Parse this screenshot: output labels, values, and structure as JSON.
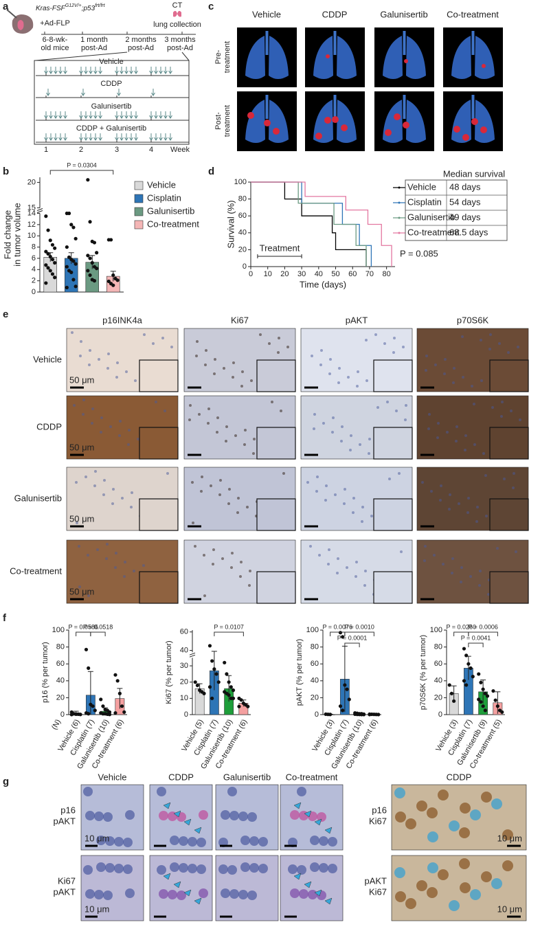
{
  "panel_labels": [
    "a",
    "b",
    "c",
    "d",
    "e",
    "f",
    "g"
  ],
  "schematic": {
    "genotype": [
      "Kras-FSF",
      "G12V/+",
      ";p53",
      "frt/frt"
    ],
    "timeline": [
      [
        "+Ad-FLP",
        "6-8-wk-",
        "old mice"
      ],
      [
        "1 month",
        "post-Ad"
      ],
      [
        "2 months",
        "post-Ad"
      ],
      [
        "CT",
        "lung collection",
        "3 months",
        "post-Ad"
      ]
    ],
    "arms": [
      "Vehicle",
      "CDDP",
      "Galunisertib",
      "CDDP + Galunisertib"
    ],
    "weeks": [
      "1",
      "2",
      "3",
      "4",
      "Week"
    ]
  },
  "ct": {
    "columns": [
      "Vehicle",
      "CDDP",
      "Galunisertib",
      "Co-treatment"
    ],
    "rows": [
      [
        "Pre-",
        "treatment"
      ],
      [
        "Post-",
        "treatment"
      ]
    ]
  },
  "ihc": {
    "columns": [
      "p16INK4a",
      "Ki67",
      "pAKT",
      "p70S6K"
    ],
    "rows": [
      "Vehicle",
      "CDDP",
      "Galunisertib",
      "Co-treatment"
    ],
    "scale_bar": "50 μm"
  },
  "if": {
    "columns": [
      "Vehicle",
      "CDDP",
      "Galunisertib",
      "Co-treatment"
    ],
    "rows": [
      [
        "p16",
        "pAKT"
      ],
      [
        "Ki67",
        "pAKT"
      ]
    ],
    "scale_bar": "10 μm",
    "extra": {
      "column": "CDDP",
      "rows": [
        [
          "p16",
          "Ki67"
        ],
        [
          "pAKT",
          "Ki67"
        ]
      ]
    }
  },
  "chart_data": [
    {
      "type": "bar",
      "ylabel": [
        "Fold change",
        "in tumor volume"
      ],
      "legend": "right",
      "categories": [
        "Vehicle",
        "Cisplatin",
        "Galunisertib",
        "Co-treatment"
      ],
      "colors": [
        "#d9d9d9",
        "#2e75b6",
        "#6b9a82",
        "#f4b6b6"
      ],
      "values": [
        6.2,
        6.0,
        5.3,
        2.8
      ],
      "errors": [
        0.8,
        1.0,
        1.2,
        0.9
      ],
      "points": [
        [
          13.5,
          11,
          9.2,
          8.4,
          7.8,
          7.2,
          6.8,
          6.3,
          5.8,
          5.2,
          4.8,
          4.3,
          3.8,
          3.2,
          2.6,
          1.6
        ],
        [
          14,
          14,
          12,
          11.5,
          9.5,
          8,
          6.2,
          5.8,
          5.5,
          5,
          4.5,
          3.8,
          3.5,
          2.2,
          1,
          0.8
        ],
        [
          20.5,
          12.5,
          9,
          8.8,
          7,
          6.5,
          6,
          5.2,
          4.5,
          4.2,
          3.8,
          3,
          2.2,
          2
        ],
        [
          9.3,
          9.3,
          3,
          2.4,
          2.1,
          1.9,
          1.5,
          1.2
        ]
      ],
      "ylim": [
        0,
        21
      ],
      "ybreak": [
        14,
        15
      ],
      "yticks": [
        0,
        2,
        4,
        6,
        8,
        10,
        12,
        14,
        15,
        20
      ],
      "p_values": [
        "P = 0.0304"
      ]
    },
    {
      "type": "step",
      "ylabel": "Survival (%)",
      "xlabel": "Time (days)",
      "table_header": "Median survival",
      "series": [
        {
          "name": "Vehicle",
          "color": "#000000",
          "median": "48 days",
          "x": [
            0,
            20,
            30,
            48,
            50,
            68
          ],
          "values": [
            100,
            80,
            60,
            40,
            20,
            0
          ]
        },
        {
          "name": "Cisplatin",
          "color": "#2e75b6",
          "median": "54 days",
          "x": [
            0,
            30,
            54,
            64,
            71
          ],
          "values": [
            100,
            75,
            50,
            25,
            0
          ]
        },
        {
          "name": "Galunisertib",
          "color": "#6b9a82",
          "median": "49 days",
          "x": [
            0,
            28,
            49,
            62,
            68
          ],
          "values": [
            100,
            75,
            50,
            25,
            0
          ]
        },
        {
          "name": "Co-treatment",
          "color": "#e377a0",
          "median": "68.5 days",
          "x": [
            0,
            32,
            56,
            69,
            77,
            83
          ],
          "values": [
            100,
            83,
            67,
            50,
            25,
            0
          ]
        }
      ],
      "xlim": [
        0,
        85
      ],
      "xticks": [
        0,
        10,
        20,
        30,
        40,
        50,
        60,
        70,
        80
      ],
      "ylim": [
        0,
        100
      ],
      "yticks": [
        0,
        20,
        40,
        60,
        80,
        100
      ],
      "treatment": {
        "label": "Treatment",
        "range": [
          4,
          30
        ]
      },
      "p_value": "P = 0.085"
    },
    {
      "type": "bar",
      "ylabel": "p16 (% per tumor)",
      "xlabel": "(N)",
      "categories": [
        "Vehicle (6)",
        "Cisplatin (7)",
        "Galunisertib (10)",
        "Co-treatment (6)"
      ],
      "colors": [
        "#d9d9d9",
        "#2e75b6",
        "#1e9e3a",
        "#f4a0a0"
      ],
      "values": [
        2,
        23,
        4,
        19
      ],
      "errors": [
        2,
        28,
        4,
        12
      ],
      "points": [
        [
          3,
          1,
          0.5,
          0.5,
          0.2,
          0.1
        ],
        [
          77,
          55,
          12,
          10,
          5,
          2,
          1
        ],
        [
          18,
          10,
          6,
          5,
          3,
          2,
          1,
          1,
          0.5,
          0.2
        ],
        [
          47,
          40,
          25,
          10,
          3,
          2
        ]
      ],
      "ylim": [
        0,
        100
      ],
      "yticks": [
        0,
        20,
        40,
        60,
        80,
        100
      ],
      "p_values": [
        "P = 0.0586",
        "P = 0.0518"
      ]
    },
    {
      "type": "bar",
      "ylabel": "Ki67 (% per tumor)",
      "categories": [
        "Vehicle (5)",
        "Cisplatin (7)",
        "Galunisertib (10)",
        "Co-treatment (6)"
      ],
      "colors": [
        "#d9d9d9",
        "#2e75b6",
        "#1e9e3a",
        "#f4a0a0"
      ],
      "values": [
        16,
        27,
        16,
        7
      ],
      "errors": [
        3,
        12,
        8,
        2
      ],
      "points": [
        [
          20,
          18,
          15,
          14,
          13
        ],
        [
          45,
          33,
          28,
          25,
          20,
          17,
          10
        ],
        [
          32,
          25,
          20,
          17,
          15,
          14,
          13,
          12,
          10,
          10
        ],
        [
          10,
          9,
          7,
          6,
          5,
          5
        ]
      ],
      "ylim": [
        0,
        62
      ],
      "ybreak": [
        35,
        38
      ],
      "yticks": [
        0,
        10,
        20,
        30,
        40,
        60
      ],
      "p_values": [
        "P = 0.0107"
      ]
    },
    {
      "type": "bar",
      "ylabel": "pAKT (% per tumor)",
      "categories": [
        "Vehicle (3)",
        "Cisplatin (7)",
        "Galunisertib (10)",
        "Co-treatment (6)"
      ],
      "colors": [
        "#d9d9d9",
        "#2e75b6",
        "#1e9e3a",
        "#f4a0a0"
      ],
      "values": [
        0,
        42,
        1,
        0.5
      ],
      "errors": [
        0.5,
        39,
        1,
        0.5
      ],
      "points": [
        [
          0.5,
          0.3,
          0.2
        ],
        [
          97,
          92,
          35,
          30,
          18,
          10,
          5
        ],
        [
          2,
          1.5,
          1,
          1,
          0.5,
          0.5,
          0.3,
          0.2,
          0.1,
          0.1
        ],
        [
          0.5,
          0.4,
          0.3,
          0.2,
          0.1,
          0.1
        ]
      ],
      "ylim": [
        0,
        100
      ],
      "yticks": [
        0,
        20,
        40,
        60,
        80,
        100
      ],
      "p_values": [
        "P = 0.0076",
        "P = 0.0010",
        "P = 0.0001"
      ]
    },
    {
      "type": "bar",
      "ylabel": "p70S6K (% per tumor)",
      "categories": [
        "Vehicle (3)",
        "Cisplatin (7)",
        "Galunisertib (9)",
        "Co-treatment (5)"
      ],
      "colors": [
        "#d9d9d9",
        "#2e75b6",
        "#1e9e3a",
        "#f4a0a0"
      ],
      "values": [
        25,
        55,
        27,
        14
      ],
      "errors": [
        9,
        14,
        14,
        13
      ],
      "points": [
        [
          35,
          25,
          16
        ],
        [
          78,
          70,
          60,
          55,
          45,
          40,
          35
        ],
        [
          48,
          38,
          30,
          25,
          22,
          18,
          15,
          10,
          5
        ],
        [
          28,
          17,
          10,
          5,
          3
        ]
      ],
      "ylim": [
        0,
        100
      ],
      "yticks": [
        0,
        20,
        40,
        60,
        80,
        100
      ],
      "p_values": [
        "P = 0.0260",
        "P = 0.0006",
        "P = 0.0041"
      ]
    }
  ]
}
